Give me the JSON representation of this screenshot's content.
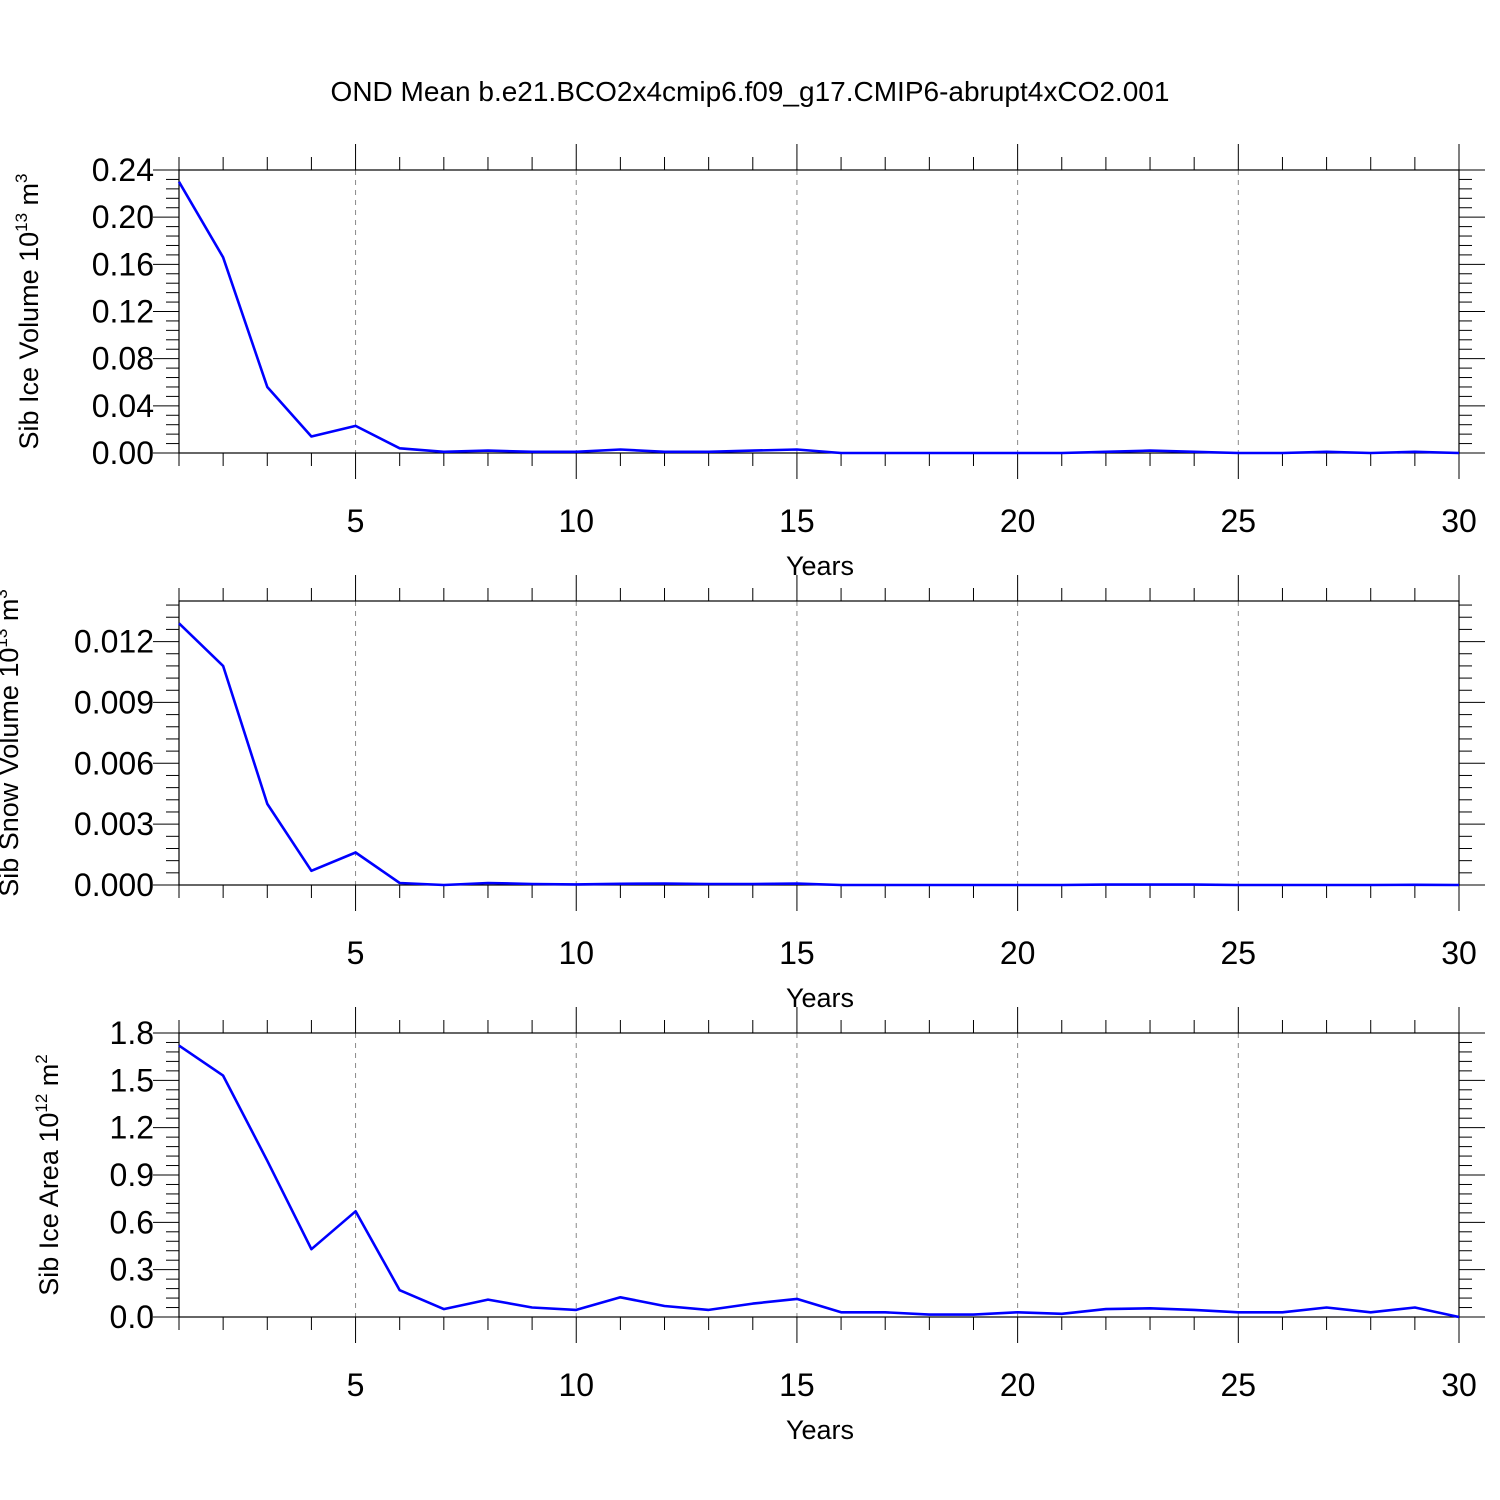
{
  "title": "OND Mean b.e21.BCO2x4cmip6.f09_g17.CMIP6-abrupt4xCO2.001",
  "chart_data": [
    {
      "type": "line",
      "xlabel": "Years",
      "ylabel": "Sib Ice Volume 10",
      "ylabel_power": "13",
      "ylabel_unit": " m",
      "ylabel_unit_power": "3",
      "xlim": [
        1,
        30
      ],
      "ylim": [
        0,
        0.24
      ],
      "xticks": [
        5,
        10,
        15,
        20,
        25,
        30
      ],
      "xtick_labels": [
        "5",
        "10",
        "15",
        "20",
        "25",
        "30"
      ],
      "yticks": [
        0,
        0.04,
        0.08,
        0.12,
        0.16,
        0.2,
        0.24
      ],
      "ytick_labels": [
        "0.00",
        "0.04",
        "0.08",
        "0.12",
        "0.16",
        "0.20",
        "0.24"
      ],
      "grid": "vertical dashed at major x ticks",
      "color": "#0000ff",
      "x": [
        1,
        2,
        3,
        4,
        5,
        6,
        7,
        8,
        9,
        10,
        11,
        12,
        13,
        14,
        15,
        16,
        17,
        18,
        19,
        20,
        21,
        22,
        23,
        24,
        25,
        26,
        27,
        28,
        29,
        30
      ],
      "values": [
        0.23,
        0.166,
        0.056,
        0.014,
        0.023,
        0.004,
        0.001,
        0.002,
        0.001,
        0.001,
        0.003,
        0.001,
        0.001,
        0.002,
        0.003,
        0.0,
        0.0,
        0.0,
        0.0,
        0.0,
        0.0,
        0.001,
        0.002,
        0.001,
        0.0,
        0.0,
        0.001,
        0.0,
        0.001,
        0.0
      ]
    },
    {
      "type": "line",
      "xlabel": "Years",
      "ylabel": "Sib Snow Volume 10",
      "ylabel_power": "13",
      "ylabel_unit": " m",
      "ylabel_unit_power": "3",
      "xlim": [
        1,
        30
      ],
      "ylim": [
        0,
        0.014
      ],
      "xticks": [
        5,
        10,
        15,
        20,
        25,
        30
      ],
      "xtick_labels": [
        "5",
        "10",
        "15",
        "20",
        "25",
        "30"
      ],
      "yticks": [
        0,
        0.003,
        0.006,
        0.009,
        0.012
      ],
      "ytick_labels": [
        "0.000",
        "0.003",
        "0.006",
        "0.009",
        "0.012"
      ],
      "grid": "vertical dashed at major x ticks",
      "color": "#0000ff",
      "x": [
        1,
        2,
        3,
        4,
        5,
        6,
        7,
        8,
        9,
        10,
        11,
        12,
        13,
        14,
        15,
        16,
        17,
        18,
        19,
        20,
        21,
        22,
        23,
        24,
        25,
        26,
        27,
        28,
        29,
        30
      ],
      "values": [
        0.0129,
        0.0108,
        0.004,
        0.0007,
        0.0016,
        0.0001,
        0.0,
        0.0001,
        5e-05,
        3e-05,
        6e-05,
        7e-05,
        5e-05,
        5e-05,
        7e-05,
        0.0,
        0.0,
        0.0,
        0.0,
        0.0,
        0.0,
        2e-05,
        2e-05,
        2e-05,
        0.0,
        0.0,
        0.0,
        0.0,
        1e-05,
        0.0
      ]
    },
    {
      "type": "line",
      "xlabel": "Years",
      "ylabel": "Sib Ice Area 10",
      "ylabel_power": "12",
      "ylabel_unit": " m",
      "ylabel_unit_power": "2",
      "xlim": [
        1,
        30
      ],
      "ylim": [
        0,
        1.8
      ],
      "xticks": [
        5,
        10,
        15,
        20,
        25,
        30
      ],
      "xtick_labels": [
        "5",
        "10",
        "15",
        "20",
        "25",
        "30"
      ],
      "yticks": [
        0,
        0.3,
        0.6,
        0.9,
        1.2,
        1.5,
        1.8
      ],
      "ytick_labels": [
        "0.0",
        "0.3",
        "0.6",
        "0.9",
        "1.2",
        "1.5",
        "1.8"
      ],
      "grid": "vertical dashed at major x ticks",
      "color": "#0000ff",
      "x": [
        1,
        2,
        3,
        4,
        5,
        6,
        7,
        8,
        9,
        10,
        11,
        12,
        13,
        14,
        15,
        16,
        17,
        18,
        19,
        20,
        21,
        22,
        23,
        24,
        25,
        26,
        27,
        28,
        29,
        30
      ],
      "values": [
        1.72,
        1.53,
        0.99,
        0.43,
        0.67,
        0.17,
        0.05,
        0.11,
        0.06,
        0.045,
        0.125,
        0.07,
        0.045,
        0.085,
        0.115,
        0.03,
        0.03,
        0.015,
        0.015,
        0.03,
        0.02,
        0.05,
        0.055,
        0.045,
        0.03,
        0.03,
        0.06,
        0.03,
        0.06,
        0.0
      ]
    }
  ]
}
